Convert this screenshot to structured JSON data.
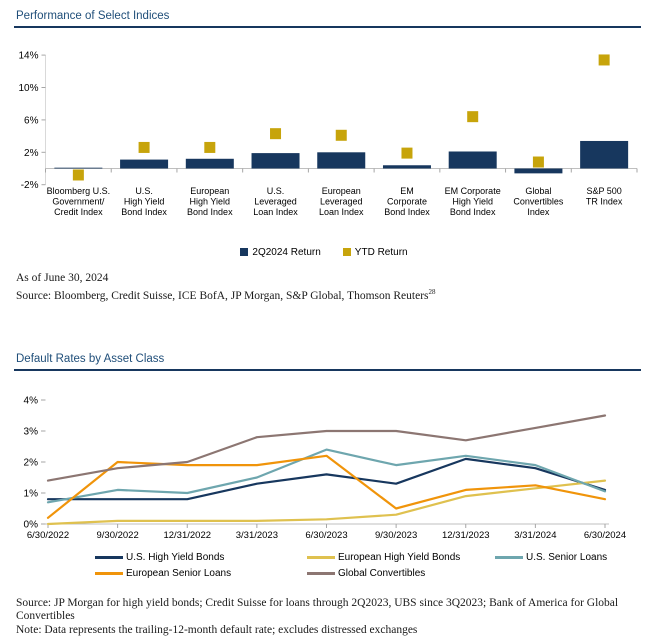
{
  "page": {
    "footnote1_line1": "As of June 30, 2024",
    "footnote1_line2": "Source: Bloomberg, Credit Suisse, ICE BofA, JP Morgan, S&P Global, Thomson Reuters",
    "footnote1_superscript": "28",
    "footnote2_line1": "Source: JP Morgan for high yield bonds; Credit Suisse for loans through 2Q2023, UBS since 3Q2023; Bank of America for Global Convertibles",
    "footnote2_line2": "Note: Data represents the trailing-12-month default rate; excludes distressed exchanges"
  },
  "colors": {
    "navy": "#17375E",
    "gold": "#C7A40B",
    "title_text": "#1F4E79",
    "axis_line": "#BFBFBF",
    "tick": "#A6A6A6"
  },
  "chart_data": [
    {
      "type": "bar",
      "title": "Performance of Select Indices",
      "ylim": [
        -2,
        14
      ],
      "yticks": [
        14,
        10,
        6,
        2,
        -2
      ],
      "grid": false,
      "legend_position": "bottom-center",
      "categories": [
        "Bloomberg U.S. Government/Credit Index",
        "U.S. High Yield Bond Index",
        "European High Yield Bond Index",
        "U.S. Leveraged Loan Index",
        "European Leveraged Loan Index",
        "EM Corporate Bond Index",
        "EM Corporate High Yield Bond Index",
        "Global Convertibles Index",
        "S&P 500 TR Index"
      ],
      "category_lines": [
        [
          "Bloomberg U.S.",
          "Government/",
          "Credit Index"
        ],
        [
          "U.S.",
          "High Yield",
          "Bond Index"
        ],
        [
          "European",
          "High Yield",
          "Bond Index"
        ],
        [
          "U.S.",
          "Leveraged",
          "Loan Index"
        ],
        [
          "European",
          "Leveraged",
          "Loan Index"
        ],
        [
          "EM",
          "Corporate",
          "Bond Index"
        ],
        [
          "EM Corporate",
          "High Yield",
          "Bond Index"
        ],
        [
          "Global",
          "Convertibles",
          "Index"
        ],
        [
          "S&P 500",
          "TR Index"
        ]
      ],
      "series": [
        {
          "name": "2Q2024 Return",
          "style": "bar",
          "color": "#17375E",
          "values": [
            0.1,
            1.1,
            1.2,
            1.9,
            2.0,
            0.4,
            2.1,
            -0.6,
            3.4
          ]
        },
        {
          "name": "YTD Return",
          "style": "square-marker",
          "color": "#C7A40B",
          "values": [
            -0.8,
            2.6,
            2.6,
            4.3,
            4.1,
            1.9,
            6.4,
            0.8,
            13.4
          ]
        }
      ]
    },
    {
      "type": "line",
      "title": "Default Rates by Asset Class",
      "ylim": [
        0,
        4
      ],
      "yticks": [
        4,
        3,
        2,
        1,
        0
      ],
      "grid": false,
      "legend_position": "bottom-left",
      "x": [
        "6/30/2022",
        "9/30/2022",
        "12/31/2022",
        "3/31/2023",
        "6/30/2023",
        "9/30/2023",
        "12/31/2023",
        "3/31/2024",
        "6/30/2024"
      ],
      "series": [
        {
          "name": "U.S. High Yield Bonds",
          "color": "#17375E",
          "values": [
            0.8,
            0.8,
            0.8,
            1.3,
            1.6,
            1.3,
            2.1,
            1.8,
            1.1
          ]
        },
        {
          "name": "European High Yield Bonds",
          "color": "#DFC14F",
          "values": [
            0.0,
            0.1,
            0.1,
            0.1,
            0.15,
            0.3,
            0.9,
            1.15,
            1.4
          ]
        },
        {
          "name": "U.S. Senior Loans",
          "color": "#6EA6AE",
          "values": [
            0.7,
            1.1,
            1.0,
            1.5,
            2.4,
            1.9,
            2.2,
            1.9,
            1.05
          ]
        },
        {
          "name": "European Senior Loans",
          "color": "#F0940A",
          "values": [
            0.2,
            2.0,
            1.9,
            1.9,
            2.2,
            0.5,
            1.1,
            1.25,
            0.8
          ]
        },
        {
          "name": "Global Convertibles",
          "color": "#8C7672",
          "values": [
            1.4,
            1.8,
            2.0,
            2.8,
            3.0,
            3.0,
            2.7,
            3.1,
            3.5
          ]
        }
      ]
    }
  ]
}
